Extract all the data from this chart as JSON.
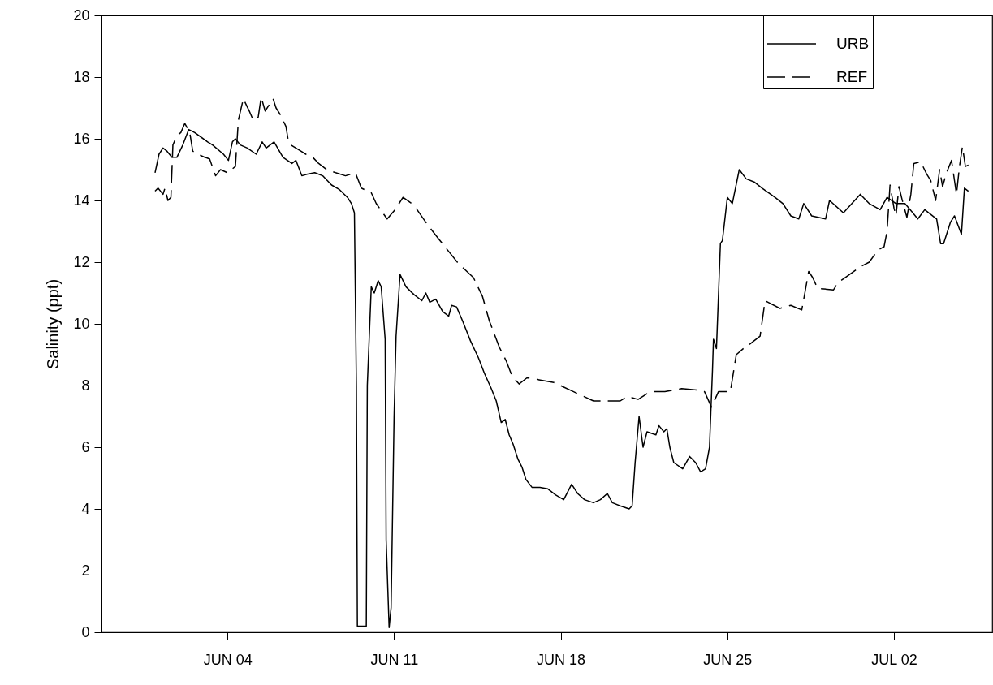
{
  "chart_data": {
    "type": "line",
    "ylabel": "Salinity (ppt)",
    "legend": "top right",
    "xlim": [
      "--05-29T17:00",
      "--07-06T03:00"
    ],
    "xticks": [
      {
        "value": "--06-04",
        "label": "JUN 04"
      },
      {
        "value": "--06-11",
        "label": "JUN 11"
      },
      {
        "value": "--06-18",
        "label": "JUN 18"
      },
      {
        "value": "--06-25",
        "label": "JUN 25"
      },
      {
        "value": "--07-02",
        "label": "JUL 02"
      }
    ],
    "ylim": [
      0,
      20
    ],
    "yticks": [
      0,
      2,
      4,
      6,
      8,
      10,
      12,
      14,
      16,
      18,
      20
    ],
    "series": [
      {
        "name": "URB",
        "color": "#000000",
        "line_style": "solid",
        "x": [
          "--05-31T23:00",
          "--06-01T03:00",
          "--06-01T07:00",
          "--06-01T11:00",
          "--06-01T16:00",
          "--06-01T21:00",
          "--06-02T03:00",
          "--06-02T09:00",
          "--06-02T15:00",
          "--06-03T04:00",
          "--06-03T09:00",
          "--06-03T20:00",
          "--06-04T01:00",
          "--06-04T05:00",
          "--06-04T08:00",
          "--06-04T13:00",
          "--06-04T20:00",
          "--06-05T05:00",
          "--06-05T11:00",
          "--06-05T15:00",
          "--06-05T23:00",
          "--06-06T08:00",
          "--06-06T17:00",
          "--06-06T21:00",
          "--06-07T03:00",
          "--06-07T08:00",
          "--06-07T16:00",
          "--06-08T00:00",
          "--06-08T09:00",
          "--06-08T17:00",
          "--06-09T01:00",
          "--06-09T05:00",
          "--06-09T08:00",
          "--06-09T10:00",
          "--06-09T11:00",
          "--06-09T20:00",
          "--06-09T21:00",
          "--06-10T01:00",
          "--06-10T04:00",
          "--06-10T08:00",
          "--06-10T11:00",
          "--06-10T15:00",
          "--06-10T16:00",
          "--06-10T19:00",
          "--06-10T21:00",
          "--06-11T00:00",
          "--06-11T02:00",
          "--06-11T06:00",
          "--06-11T12:00",
          "--06-11T20:00",
          "--06-12T04:00",
          "--06-12T08:00",
          "--06-12T12:00",
          "--06-12T18:00",
          "--06-13T01:00",
          "--06-13T07:00",
          "--06-13T10:00",
          "--06-13T15:00",
          "--06-13T21:00",
          "--06-14T05:00",
          "--06-14T13:00",
          "--06-14T19:00",
          "--06-15T02:00",
          "--06-15T07:00",
          "--06-15T12:00",
          "--06-15T16:00",
          "--06-15T20:00",
          "--06-16T00:00",
          "--06-16T05:00",
          "--06-16T09:00",
          "--06-16T13:00",
          "--06-16T19:00",
          "--06-17T03:00",
          "--06-17T11:00",
          "--06-17T19:00",
          "--06-18T03:00",
          "--06-18T11:00",
          "--06-18T17:00",
          "--06-19T00:00",
          "--06-19T09:00",
          "--06-19T16:00",
          "--06-19T23:00",
          "--06-20T04:00",
          "--06-20T12:00",
          "--06-20T21:00",
          "--06-21T00:00",
          "--06-21T03:00",
          "--06-21T07:00",
          "--06-21T11:00",
          "--06-21T15:00",
          "--06-22T00:00",
          "--06-22T03:00",
          "--06-22T08:00",
          "--06-22T11:00",
          "--06-22T14:00",
          "--06-22T18:00",
          "--06-23T03:00",
          "--06-23T10:00",
          "--06-23T16:00",
          "--06-23T21:00",
          "--06-24T02:00",
          "--06-24T06:00",
          "--06-24T09:00",
          "--06-24T10:00",
          "--06-24T13:00",
          "--06-24T17:00",
          "--06-24T19:00",
          "--06-25T00:00",
          "--06-25T05:00",
          "--06-25T12:00",
          "--06-25T19:00",
          "--06-26T03:00",
          "--06-26T11:00",
          "--06-27T00:00",
          "--06-27T08:00",
          "--06-27T16:00",
          "--06-28T00:00",
          "--06-28T05:00",
          "--06-28T13:00",
          "--06-29T03:00",
          "--06-29T07:00",
          "--06-29T21:00",
          "--06-30T14:00",
          "--06-30T23:00",
          "--07-01T10:00",
          "--07-01T17:00",
          "--07-02T02:00",
          "--07-02T11:00",
          "--07-02T19:00",
          "--07-03T00:00",
          "--07-03T07:00",
          "--07-03T19:00",
          "--07-03T23:00",
          "--07-04T02:00",
          "--07-04T09:00",
          "--07-04T13:00",
          "--07-04T20:00",
          "--07-04T23:00",
          "--07-05T03:00"
        ],
        "values": [
          14.9,
          15.5,
          15.7,
          15.6,
          15.4,
          15.4,
          15.8,
          16.3,
          16.2,
          15.9,
          15.8,
          15.5,
          15.3,
          15.9,
          16.0,
          15.8,
          15.7,
          15.5,
          15.9,
          15.7,
          15.9,
          15.4,
          15.2,
          15.3,
          14.8,
          14.85,
          14.9,
          14.8,
          14.5,
          14.35,
          14.1,
          13.9,
          13.6,
          8.0,
          0.2,
          0.2,
          8.0,
          11.2,
          11.0,
          11.4,
          11.2,
          9.5,
          3.0,
          0.15,
          0.8,
          7.0,
          9.6,
          11.6,
          11.2,
          10.95,
          10.75,
          11.0,
          10.7,
          10.8,
          10.4,
          10.25,
          10.6,
          10.55,
          10.1,
          9.45,
          8.9,
          8.4,
          7.9,
          7.5,
          6.8,
          6.9,
          6.4,
          6.1,
          5.6,
          5.35,
          4.95,
          4.7,
          4.7,
          4.65,
          4.45,
          4.3,
          4.8,
          4.5,
          4.3,
          4.2,
          4.3,
          4.5,
          4.2,
          4.1,
          4.0,
          4.1,
          5.5,
          7.0,
          6.0,
          6.5,
          6.4,
          6.7,
          6.5,
          6.6,
          6.0,
          5.5,
          5.3,
          5.7,
          5.5,
          5.2,
          5.3,
          6.0,
          8.5,
          9.5,
          9.2,
          12.6,
          12.7,
          14.1,
          13.9,
          15.0,
          14.7,
          14.6,
          14.4,
          14.1,
          13.9,
          13.5,
          13.4,
          13.9,
          13.5,
          13.4,
          14.0,
          13.6,
          14.2,
          13.9,
          13.7,
          14.1,
          13.9,
          13.9,
          13.6,
          13.4,
          13.7,
          13.4,
          12.6,
          12.6,
          13.3,
          13.5,
          12.9,
          14.4,
          14.3
        ]
      },
      {
        "name": "REF",
        "color": "#000000",
        "line_style": "dashed",
        "x": [
          "--05-31T23:00",
          "--06-01T02:00",
          "--06-01T07:00",
          "--06-01T09:00",
          "--06-01T12:00",
          "--06-01T15:00",
          "--06-01T17:00",
          "--06-01T21:00",
          "--06-02T01:00",
          "--06-02T05:00",
          "--06-02T10:00",
          "--06-02T13:00",
          "--06-02T18:00",
          "--06-03T01:00",
          "--06-03T06:00",
          "--06-03T12:00",
          "--06-03T17:00",
          "--06-04T00:00",
          "--06-04T08:00",
          "--06-04T11:00",
          "--06-04T16:00",
          "--06-04T22:00",
          "--06-05T02:00",
          "--06-05T07:00",
          "--06-05T10:00",
          "--06-05T14:00",
          "--06-05T22:00",
          "--06-06T01:00",
          "--06-06T05:00",
          "--06-06T11:00",
          "--06-06T13:00",
          "--06-06T16:00",
          "--06-07T02:00",
          "--06-07T07:00",
          "--06-07T14:00",
          "--06-07T20:00",
          "--06-08T04:00",
          "--06-08T13:00",
          "--06-08T23:00",
          "--06-09T09:00",
          "--06-09T15:00",
          "--06-10T01:00",
          "--06-10T06:00",
          "--06-10T17:00",
          "--06-11T01:00",
          "--06-11T09:00",
          "--06-11T20:00",
          "--06-12T10:00",
          "--06-12T21:00",
          "--06-13T17:00",
          "--06-14T08:00",
          "--06-14T17:00",
          "--06-15T00:00",
          "--06-15T10:00",
          "--06-15T17:00",
          "--06-15T23:00",
          "--06-16T06:00",
          "--06-16T14:00",
          "--06-17T00:00",
          "--06-17T17:00",
          "--06-18T13:00",
          "--06-19T09:00",
          "--06-19T20:00",
          "--06-20T12:00",
          "--06-20T19:00",
          "--06-21T06:00",
          "--06-21T18:00",
          "--06-22T09:00",
          "--06-23T02:00",
          "--06-23T18:00",
          "--06-24T01:00",
          "--06-24T08:00",
          "--06-24T15:00",
          "--06-25T03:00",
          "--06-25T09:00",
          "--06-25T18:00",
          "--06-25T23:00",
          "--06-26T09:00",
          "--06-26T14:00",
          "--06-27T05:00",
          "--06-27T16:00",
          "--06-28T03:00",
          "--06-28T05:00",
          "--06-28T10:00",
          "--06-28T14:00",
          "--06-28T19:00",
          "--06-29T11:00",
          "--06-29T16:00",
          "--06-30T01:00",
          "--06-30T14:00",
          "--06-30T23:00",
          "--07-01T08:00",
          "--07-01T14:00",
          "--07-01T17:00",
          "--07-01T20:00",
          "--07-02T00:00",
          "--07-02T02:00",
          "--07-02T05:00",
          "--07-02T08:00",
          "--07-02T13:00",
          "--07-02T17:00",
          "--07-02T20:00",
          "--07-03T03:00",
          "--07-03T09:00",
          "--07-03T13:00",
          "--07-03T18:00",
          "--07-03T22:00",
          "--07-04T01:00",
          "--07-04T05:00",
          "--07-04T10:00",
          "--07-04T15:00",
          "--07-04T18:00",
          "--07-04T21:00",
          "--07-05T00:00",
          "--07-05T03:00"
        ],
        "values": [
          14.3,
          14.4,
          14.2,
          14.4,
          14.0,
          14.1,
          15.8,
          16.1,
          16.2,
          16.5,
          16.2,
          15.6,
          15.5,
          15.4,
          15.35,
          14.8,
          15.0,
          14.9,
          15.1,
          16.6,
          17.3,
          16.9,
          16.6,
          16.7,
          17.35,
          16.9,
          17.3,
          17.0,
          16.8,
          16.4,
          16.0,
          15.8,
          15.6,
          15.5,
          15.4,
          15.2,
          15.0,
          14.9,
          14.8,
          14.9,
          14.4,
          14.25,
          13.9,
          13.4,
          13.7,
          14.1,
          13.85,
          13.2,
          12.75,
          11.95,
          11.5,
          10.9,
          10.1,
          9.25,
          8.8,
          8.3,
          8.05,
          8.25,
          8.2,
          8.1,
          7.8,
          7.5,
          7.5,
          7.5,
          7.65,
          7.55,
          7.8,
          7.8,
          7.9,
          7.85,
          7.8,
          7.3,
          7.8,
          7.8,
          9.0,
          9.25,
          9.35,
          9.6,
          10.75,
          10.5,
          10.6,
          10.45,
          10.8,
          11.7,
          11.5,
          11.15,
          11.1,
          11.35,
          11.55,
          11.85,
          12.0,
          12.4,
          12.5,
          13.0,
          14.5,
          13.75,
          13.5,
          14.45,
          14.05,
          13.45,
          14.2,
          15.2,
          15.25,
          14.85,
          14.65,
          14.0,
          15.0,
          14.45,
          14.9,
          15.3,
          14.2,
          15.1,
          15.75,
          15.1,
          15.15
        ]
      }
    ]
  }
}
